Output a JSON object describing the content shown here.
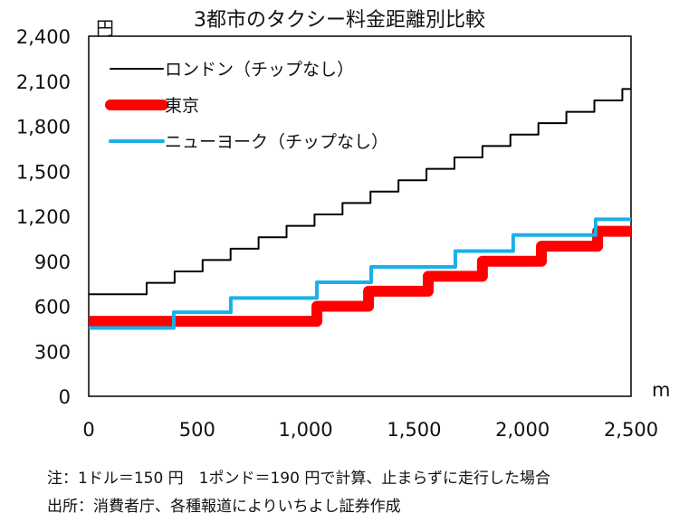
{
  "chart_data": {
    "type": "line",
    "title": "3都市のタクシー料金距離別比較",
    "ylabel": "円",
    "xlabel": "m",
    "xlim": [
      0,
      2500
    ],
    "ylim": [
      0,
      2400
    ],
    "xticks": [
      0,
      500,
      1000,
      1500,
      2000,
      2500
    ],
    "xtick_labels": [
      "0",
      "500",
      "1,000",
      "1,500",
      "2,000",
      "2,500"
    ],
    "yticks": [
      0,
      300,
      600,
      900,
      1200,
      1500,
      1800,
      2100,
      2400
    ],
    "ytick_labels": [
      "0",
      "300",
      "600",
      "900",
      "1,200",
      "1,500",
      "1,800",
      "2,100",
      "2,400"
    ],
    "legend_position": "top-left",
    "series": [
      {
        "name": "ロンドン（チップなし）",
        "color": "#000000",
        "width": 2,
        "steps_x": [
          0,
          267,
          396,
          525,
          654,
          783,
          912,
          1041,
          1170,
          1299,
          1428,
          1557,
          1686,
          1815,
          1944,
          2073,
          2202,
          2331,
          2460
        ],
        "steps_y": [
          680,
          756,
          832,
          908,
          984,
          1060,
          1136,
          1212,
          1288,
          1364,
          1440,
          1516,
          1592,
          1668,
          1744,
          1820,
          1896,
          1972,
          2048
        ]
      },
      {
        "name": "東京",
        "color": "#ff0000",
        "width": 12,
        "steps_x": [
          0,
          1052,
          1290,
          1565,
          1815,
          2087,
          2346
        ],
        "steps_y": [
          500,
          600,
          700,
          800,
          900,
          1000,
          1100
        ]
      },
      {
        "name": "ニューヨーク（チップなし）",
        "color": "#1ab0e8",
        "width": 4,
        "steps_x": [
          0,
          392,
          655,
          1052,
          1302,
          1690,
          1957,
          2337
        ],
        "steps_y": [
          455,
          560,
          655,
          760,
          862,
          968,
          1075,
          1180
        ]
      }
    ]
  },
  "notes": {
    "line1": "注：1ドル＝150 円　1ポンド＝190 円で計算、止まらずに走行した場合",
    "line2": "出所：消費者庁、各種報道によりいちよし証券作成"
  }
}
